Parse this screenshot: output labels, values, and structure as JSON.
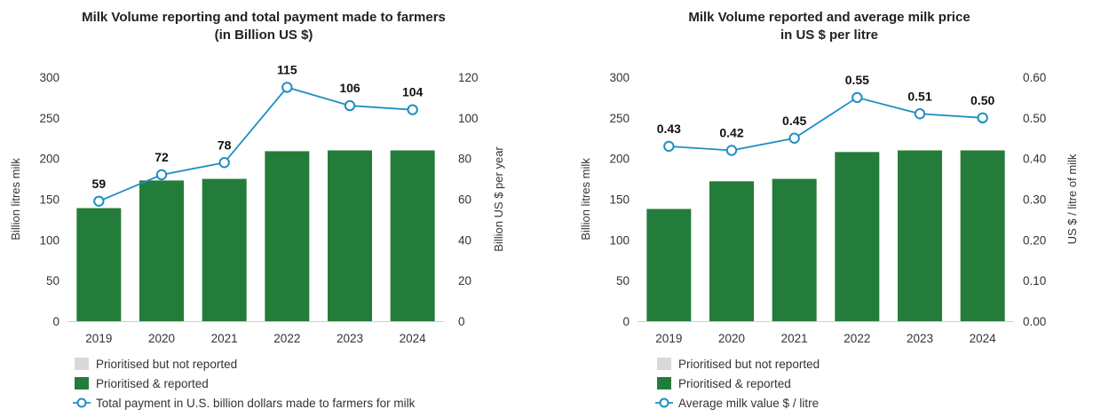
{
  "colors": {
    "reported": "#247c3a",
    "not_reported": "#d9d9d9",
    "line": "#1e8fc2",
    "gridline": "#d0d0d0"
  },
  "chart_data": [
    {
      "type": "bar",
      "title_line1": "Milk Volume reporting and total payment made to farmers",
      "title_line2": "(in Billion US $)",
      "categories": [
        "2019",
        "2020",
        "2021",
        "2022",
        "2023",
        "2024"
      ],
      "ylabel": "Billion litres milk",
      "y2label": "Billion US $ per year",
      "ylim": [
        0,
        300
      ],
      "y2lim": [
        0,
        120
      ],
      "yticks": [
        0,
        50,
        100,
        150,
        200,
        250,
        300
      ],
      "y2ticks": [
        0,
        20,
        40,
        60,
        80,
        100,
        120
      ],
      "y2tick_labels": [
        "0",
        "20",
        "40",
        "60",
        "80",
        "100",
        "120"
      ],
      "series": [
        {
          "name": "Prioritised & reported",
          "kind": "bar",
          "values": [
            139,
            173,
            175,
            209,
            210,
            210
          ]
        },
        {
          "name": "Total payment in U.S. billion dollars made to farmers for milk",
          "kind": "line",
          "axis": "right",
          "values": [
            59,
            72,
            78,
            115,
            106,
            104
          ],
          "labels": [
            "59",
            "72",
            "78",
            "115",
            "106",
            "104"
          ]
        }
      ],
      "legend": [
        "Prioritised but not reported",
        "Prioritised & reported",
        "Total payment in U.S. billion dollars made to farmers for milk"
      ],
      "legend_position": "bottom-left",
      "grid": false
    },
    {
      "type": "bar",
      "title_line1": "Milk Volume reported and average milk price",
      "title_line2": "in US $ per litre",
      "categories": [
        "2019",
        "2020",
        "2021",
        "2022",
        "2023",
        "2024"
      ],
      "ylabel": "Billion litres milk",
      "y2label": "US $ / litre of milk",
      "ylim": [
        0,
        300
      ],
      "y2lim": [
        0,
        0.6
      ],
      "yticks": [
        0,
        50,
        100,
        150,
        200,
        250,
        300
      ],
      "y2ticks": [
        0,
        0.1,
        0.2,
        0.3,
        0.4,
        0.5,
        0.6
      ],
      "y2tick_labels": [
        "0.00",
        "0.10",
        "0.20",
        "0.30",
        "0.40",
        "0.50",
        "0.60"
      ],
      "series": [
        {
          "name": "Prioritised & reported",
          "kind": "bar",
          "values": [
            138,
            172,
            175,
            208,
            210,
            210
          ]
        },
        {
          "name": "Average milk value $ / litre",
          "kind": "line",
          "axis": "right",
          "values": [
            0.43,
            0.42,
            0.45,
            0.55,
            0.51,
            0.5
          ],
          "labels": [
            "0.43",
            "0.42",
            "0.45",
            "0.55",
            "0.51",
            "0.50"
          ]
        }
      ],
      "legend": [
        "Prioritised but not reported",
        "Prioritised & reported",
        "Average milk value $ / litre"
      ],
      "legend_position": "bottom-left",
      "grid": false
    }
  ]
}
